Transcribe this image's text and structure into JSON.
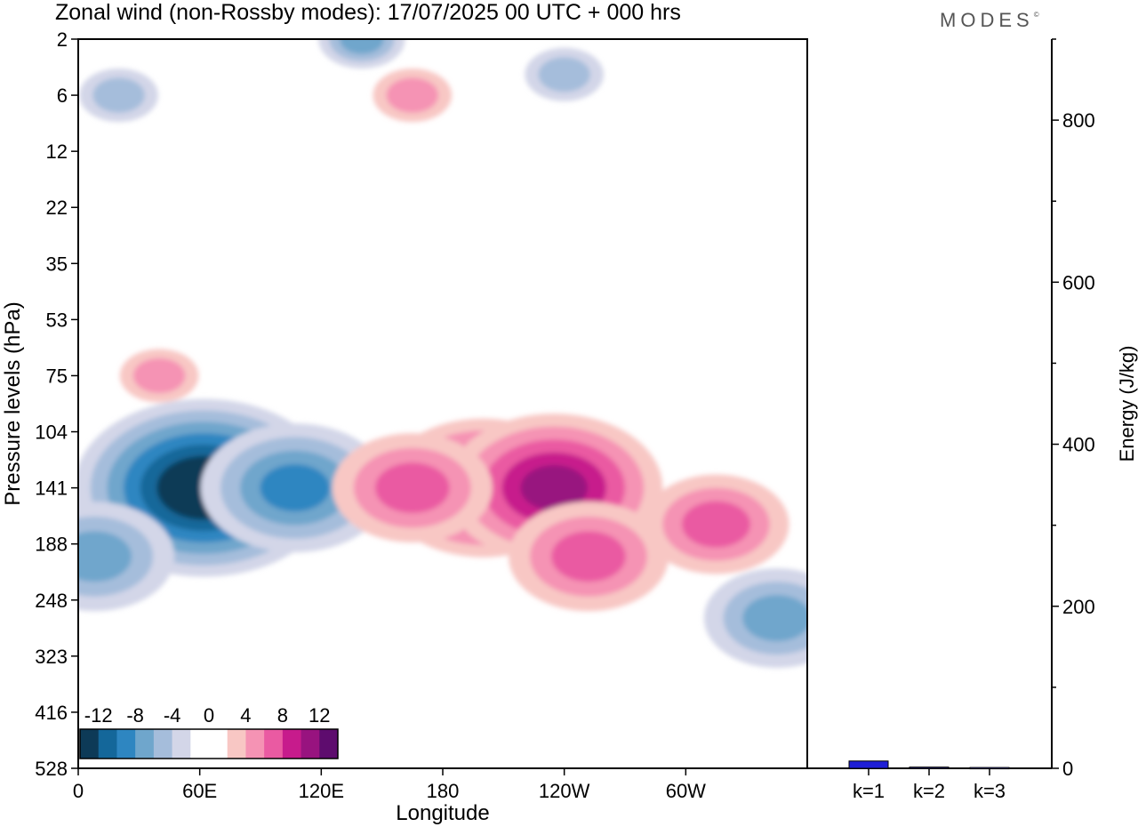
{
  "header": {
    "title": "Zonal wind (non-Rossby modes):  17/07/2025  00 UTC  + 000 hrs",
    "brand": "MODES",
    "brand_mark": "©"
  },
  "chart_data": [
    {
      "type": "heatmap",
      "title": "Zonal wind (non-Rossby modes):  17/07/2025  00 UTC  + 000 hrs",
      "xlabel": "Longitude",
      "ylabel": "Pressure levels (hPa)",
      "x_ticks": [
        "0",
        "60E",
        "120E",
        "180",
        "120W",
        "60W"
      ],
      "x_tick_values": [
        0,
        60,
        120,
        180,
        240,
        300
      ],
      "xlim": [
        0,
        360
      ],
      "y_ticks": [
        "2",
        "6",
        "12",
        "22",
        "35",
        "53",
        "75",
        "104",
        "141",
        "188",
        "248",
        "323",
        "416",
        "528"
      ],
      "colorbar": {
        "labels": [
          "-12",
          "-8",
          "-4",
          "0",
          "4",
          "8",
          "12"
        ],
        "colors": [
          "#0d3a57",
          "#14679a",
          "#2e86c1",
          "#6fa6cc",
          "#a5bddb",
          "#d3d6e8",
          "#ffffff",
          "#ffffff",
          "#f8c7c4",
          "#f593b4",
          "#ea5aa2",
          "#c71b8c",
          "#98137f",
          "#5e0c6e"
        ]
      },
      "features": [
        {
          "lon": 62,
          "level": 141,
          "value": -14
        },
        {
          "lon": 107,
          "level": 141,
          "value": -9
        },
        {
          "lon": 8,
          "level": 200,
          "value": -7
        },
        {
          "lon": 200,
          "level": 141,
          "value": 10
        },
        {
          "lon": 235,
          "level": 141,
          "value": 11
        },
        {
          "lon": 252,
          "level": 200,
          "value": 7
        },
        {
          "lon": 165,
          "level": 141,
          "value": 7
        },
        {
          "lon": 315,
          "level": 170,
          "value": 6
        },
        {
          "lon": 345,
          "level": 270,
          "value": -6
        },
        {
          "lon": 20,
          "level": 6,
          "value": -5
        },
        {
          "lon": 240,
          "level": 4,
          "value": -5
        },
        {
          "lon": 140,
          "level": 2,
          "value": -6
        },
        {
          "lon": 40,
          "level": 75,
          "value": 5
        },
        {
          "lon": 165,
          "level": 6,
          "value": 5
        }
      ]
    },
    {
      "type": "bar",
      "categories": [
        "k=1",
        "k=2",
        "k=3"
      ],
      "values": [
        9,
        1.5,
        1
      ],
      "ylabel": "Energy (J/kg)",
      "y_ticks": [
        "0",
        "200",
        "400",
        "600",
        "800"
      ],
      "ylim": [
        0,
        900
      ],
      "bar_colors": [
        "#1f1fd6",
        "#3a3a9a",
        "#3a3a9a"
      ]
    }
  ]
}
